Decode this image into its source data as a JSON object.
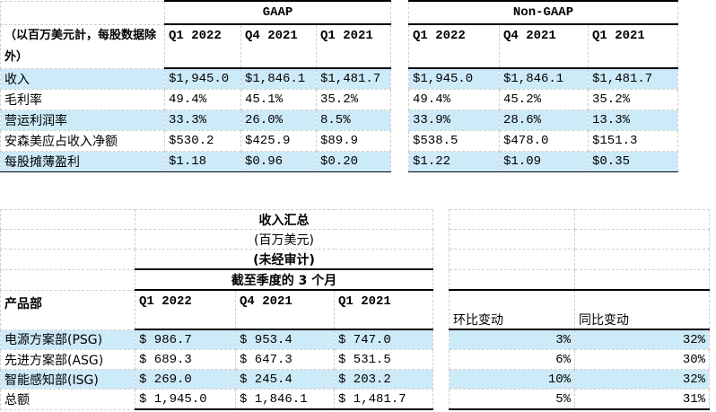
{
  "table1": {
    "unit_note": "（以百万美元計，每股数据除外）",
    "gaap_label": "GAAP",
    "nongaap_label": "Non-GAAP",
    "periods": [
      "Q1 2022",
      "Q4 2021",
      "Q1 2021"
    ],
    "rows": [
      {
        "label": "收入",
        "gaap": [
          "$1,945.0",
          "$1,846.1",
          "$1,481.7"
        ],
        "nongaap": [
          "$1,945.0",
          "$1,846.1",
          "$1,481.7"
        ]
      },
      {
        "label": "毛利率",
        "gaap": [
          "49.4%",
          "45.1%",
          "35.2%"
        ],
        "nongaap": [
          "49.4%",
          "45.2%",
          "35.2%"
        ]
      },
      {
        "label": "营运利润率",
        "gaap": [
          "33.3%",
          "26.0%",
          "8.5%"
        ],
        "nongaap": [
          "33.9%",
          "28.6%",
          "13.3%"
        ]
      },
      {
        "label": "安森美应占收入净额",
        "gaap": [
          "$530.2",
          "$425.9",
          "$89.9"
        ],
        "nongaap": [
          "$538.5",
          "$478.0",
          "$151.3"
        ]
      },
      {
        "label": "每股摊薄盈利",
        "gaap": [
          "$1.18",
          "$0.96",
          "$0.20"
        ],
        "nongaap": [
          "$1.22",
          "$1.09",
          "$0.35"
        ]
      }
    ]
  },
  "table2": {
    "title": "收入汇总",
    "subtitle1": "(百万美元)",
    "subtitle2": "(未经审计)",
    "period_header": "截至季度的 3 个月",
    "label_header": "产品部",
    "periods": [
      "Q1 2022",
      "Q4 2021",
      "Q1 2021"
    ],
    "qoq_header": "环比变动",
    "yoy_header": "同比变动",
    "rows": [
      {
        "label": "电源方案部(PSG)",
        "values": [
          "$ 986.7",
          "$ 953.4",
          "$ 747.0"
        ],
        "qoq": "3%",
        "yoy": "32%"
      },
      {
        "label": "先进方案部(ASG)",
        "values": [
          "$ 689.3",
          "$ 647.3",
          "$ 531.5"
        ],
        "qoq": "6%",
        "yoy": "30%"
      },
      {
        "label": "智能感知部(ISG)",
        "values": [
          "$ 269.0",
          "$ 245.4",
          "$ 203.2"
        ],
        "qoq": "10%",
        "yoy": "32%"
      },
      {
        "label": "总额",
        "values": [
          "$ 1,945.0",
          "$ 1,846.1",
          "$ 1,481.7"
        ],
        "qoq": "5%",
        "yoy": "31%"
      }
    ]
  },
  "colors": {
    "highlight": "#cdeaf8"
  }
}
